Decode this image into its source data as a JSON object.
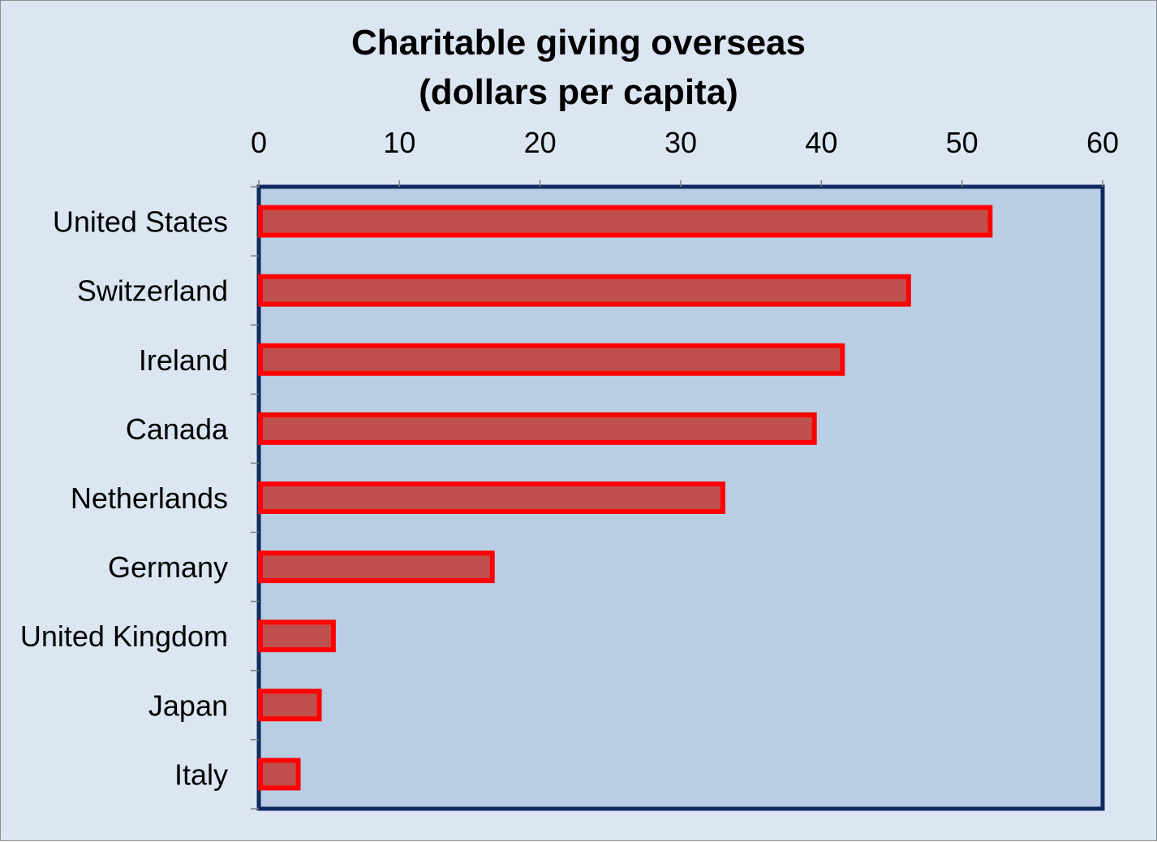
{
  "chart_data": {
    "type": "bar",
    "orientation": "horizontal",
    "title_lines": [
      "Charitable giving overseas",
      "(dollars per capita)"
    ],
    "xlabel": "",
    "ylabel": "",
    "x_axis_position": "top",
    "xlim": [
      0,
      60
    ],
    "x_ticks": [
      0,
      10,
      20,
      30,
      40,
      50,
      60
    ],
    "categories": [
      "United States",
      "Switzerland",
      "Ireland",
      "Canada",
      "Netherlands",
      "Germany",
      "United Kingdom",
      "Japan",
      "Italy"
    ],
    "values": [
      52,
      46.2,
      41.5,
      39.5,
      33,
      16.6,
      5.3,
      4.3,
      2.8
    ],
    "grid": false,
    "legend": "none",
    "colors": {
      "background": "#dce6f2",
      "plot_area": "#b9cde5",
      "plot_border": "#0f2a5e",
      "bar_fill": "#c0504d",
      "bar_outline": "#ff0000"
    }
  }
}
